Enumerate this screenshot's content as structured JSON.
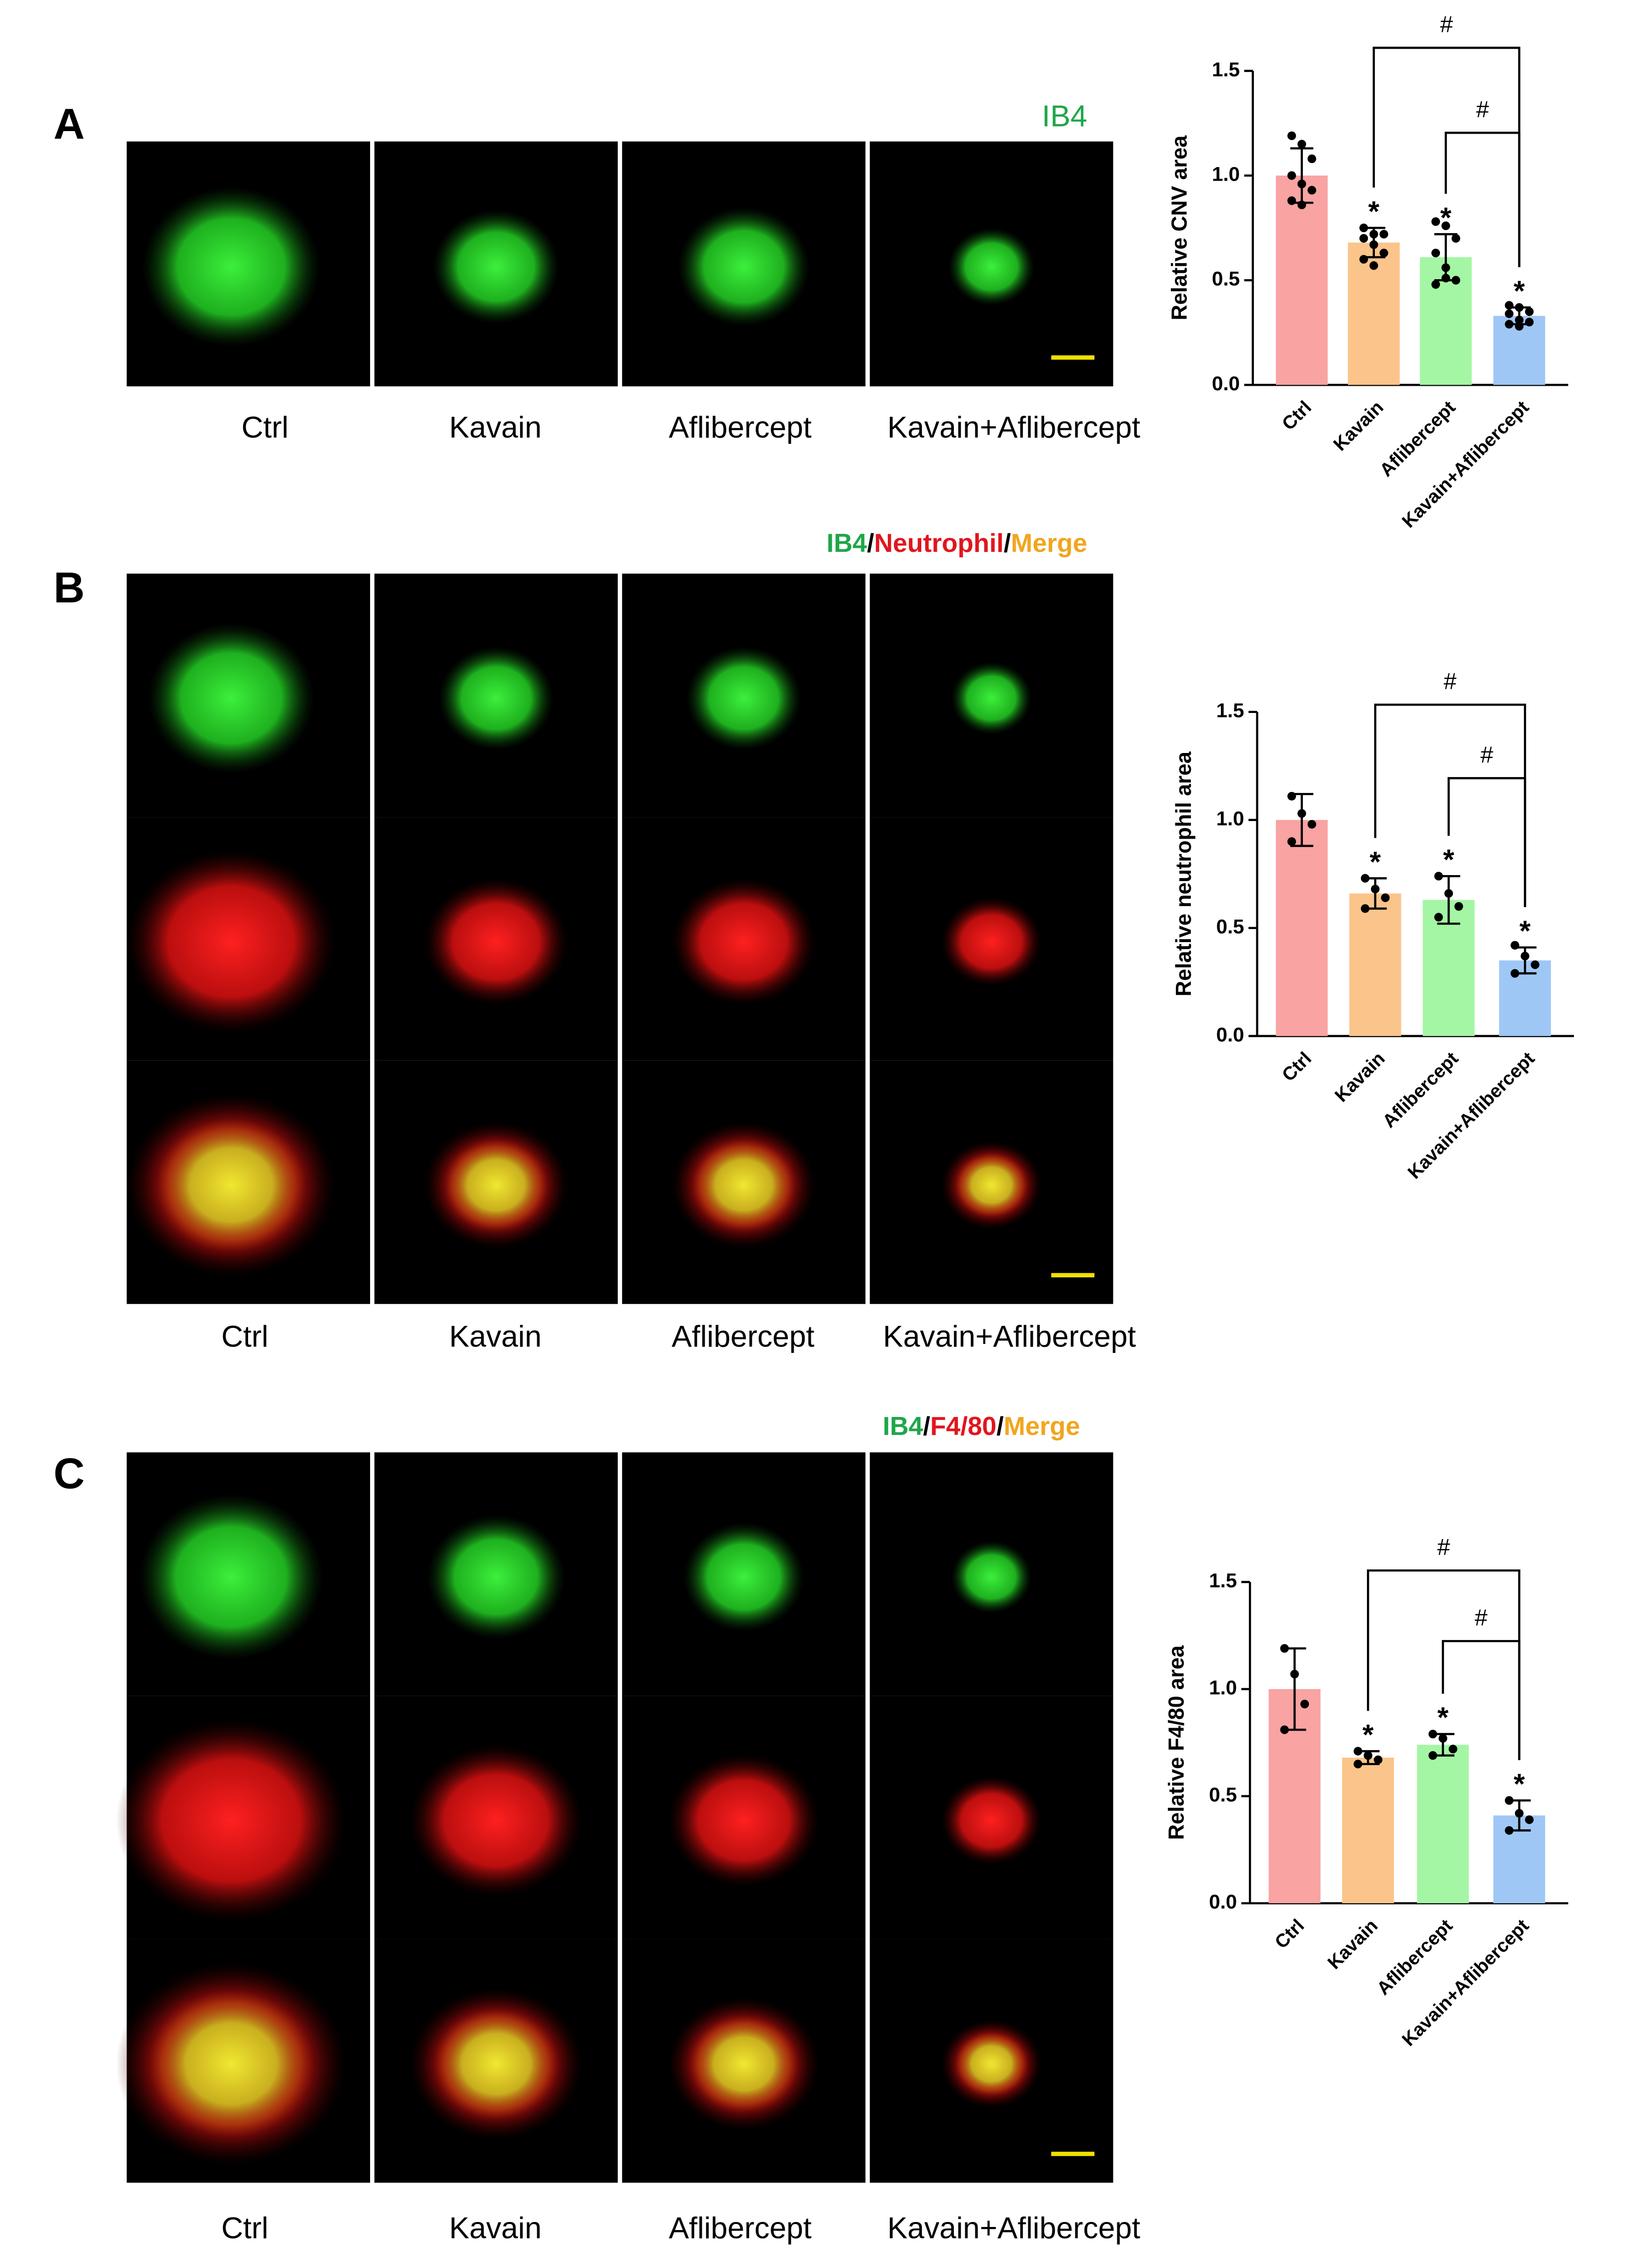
{
  "panels": [
    {
      "letter": "A",
      "stain": [
        {
          "text": "IB4",
          "color": "#1fa64a"
        }
      ],
      "columns": [
        "Ctrl",
        "Kavain",
        "Aflibercept",
        "Kavain+Aflibercept"
      ]
    },
    {
      "letter": "B",
      "stain": [
        {
          "text": "IB4",
          "color": "#1fa64a"
        },
        {
          "text": "/",
          "color": "#000000"
        },
        {
          "text": "Neutrophil",
          "color": "#e0161e"
        },
        {
          "text": "/",
          "color": "#000000"
        },
        {
          "text": "Merge",
          "color": "#f2a51d"
        }
      ],
      "columns": [
        "Ctrl",
        "Kavain",
        "Aflibercept",
        "Kavain+Aflibercept"
      ]
    },
    {
      "letter": "C",
      "stain": [
        {
          "text": "IB4",
          "color": "#1fa64a"
        },
        {
          "text": "/",
          "color": "#000000"
        },
        {
          "text": "F4/80",
          "color": "#e0161e"
        },
        {
          "text": "/",
          "color": "#000000"
        },
        {
          "text": "Merge",
          "color": "#f2a51d"
        }
      ],
      "columns": [
        "Ctrl",
        "Kavain",
        "Aflibercept",
        "Kavain+Aflibercept"
      ]
    }
  ],
  "chart_data": [
    {
      "type": "bar",
      "ylabel": "Relative CNV area",
      "categories": [
        "Ctrl",
        "Kavain",
        "Aflibercept",
        "Kavain+Aflibercept"
      ],
      "values": [
        1.0,
        0.68,
        0.61,
        0.33
      ],
      "errors": [
        0.13,
        0.07,
        0.11,
        0.04
      ],
      "points": [
        [
          1.19,
          1.15,
          1.08,
          1.0,
          0.96,
          0.93,
          0.88,
          0.86
        ],
        [
          0.75,
          0.72,
          0.72,
          0.7,
          0.67,
          0.63,
          0.6,
          0.57
        ],
        [
          0.78,
          0.76,
          0.7,
          0.63,
          0.56,
          0.5,
          0.48,
          0.51
        ],
        [
          0.38,
          0.37,
          0.35,
          0.34,
          0.31,
          0.3,
          0.29,
          0.28
        ]
      ],
      "colors": [
        "#f9a3a3",
        "#fbc48b",
        "#a4f6a4",
        "#9fc7f5"
      ],
      "significance": [
        null,
        "*",
        "*",
        "*"
      ],
      "brackets": [
        {
          "label": "#",
          "from": "Kavain",
          "to": "Kavain+Aflibercept"
        },
        {
          "label": "#",
          "from": "Aflibercept",
          "to": "Kavain+Aflibercept"
        }
      ],
      "ylim": [
        0,
        1.5
      ],
      "yticks": [
        {
          "value": 0,
          "label": "0.0"
        },
        {
          "value": 0.5,
          "label": "0.5"
        },
        {
          "value": 1,
          "label": "1.0"
        },
        {
          "value": 1.5,
          "label": "1.5"
        }
      ]
    },
    {
      "type": "bar",
      "ylabel": "Relative neutrophil area",
      "categories": [
        "Ctrl",
        "Kavain",
        "Aflibercept",
        "Kavain+Aflibercept"
      ],
      "values": [
        1.0,
        0.66,
        0.63,
        0.35
      ],
      "errors": [
        0.12,
        0.07,
        0.11,
        0.06
      ],
      "points": [
        [
          1.11,
          1.03,
          0.98,
          0.9
        ],
        [
          0.73,
          0.68,
          0.64,
          0.59
        ],
        [
          0.74,
          0.66,
          0.6,
          0.55
        ],
        [
          0.42,
          0.37,
          0.33,
          0.29
        ]
      ],
      "colors": [
        "#f9a3a3",
        "#fbc48b",
        "#a4f6a4",
        "#9fc7f5"
      ],
      "significance": [
        null,
        "*",
        "*",
        "*"
      ],
      "brackets": [
        {
          "label": "#",
          "from": "Kavain",
          "to": "Kavain+Aflibercept"
        },
        {
          "label": "#",
          "from": "Aflibercept",
          "to": "Kavain+Aflibercept"
        }
      ],
      "ylim": [
        0,
        1.5
      ],
      "yticks": [
        {
          "value": 0,
          "label": "0.0"
        },
        {
          "value": 0.5,
          "label": "0.5"
        },
        {
          "value": 1,
          "label": "1.0"
        },
        {
          "value": 1.5,
          "label": "1.5"
        }
      ]
    },
    {
      "type": "bar",
      "ylabel": "Relative F4/80 area",
      "categories": [
        "Ctrl",
        "Kavain",
        "Aflibercept",
        "Kavain+Aflibercept"
      ],
      "values": [
        1.0,
        0.68,
        0.74,
        0.41
      ],
      "errors": [
        0.19,
        0.03,
        0.05,
        0.07
      ],
      "points": [
        [
          1.19,
          1.07,
          0.93,
          0.81
        ],
        [
          0.71,
          0.69,
          0.67,
          0.65
        ],
        [
          0.79,
          0.77,
          0.72,
          0.69
        ],
        [
          0.48,
          0.42,
          0.39,
          0.34
        ]
      ],
      "colors": [
        "#f9a3a3",
        "#fbc48b",
        "#a4f6a4",
        "#9fc7f5"
      ],
      "significance": [
        null,
        "*",
        "*",
        "*"
      ],
      "brackets": [
        {
          "label": "#",
          "from": "Kavain",
          "to": "Kavain+Aflibercept"
        },
        {
          "label": "#",
          "from": "Aflibercept",
          "to": "Kavain+Aflibercept"
        }
      ],
      "ylim": [
        0,
        1.5
      ],
      "yticks": [
        {
          "value": 0,
          "label": "0.0"
        },
        {
          "value": 0.5,
          "label": "0.5"
        },
        {
          "value": 1,
          "label": "1.0"
        },
        {
          "value": 1.5,
          "label": "1.5"
        }
      ]
    }
  ]
}
